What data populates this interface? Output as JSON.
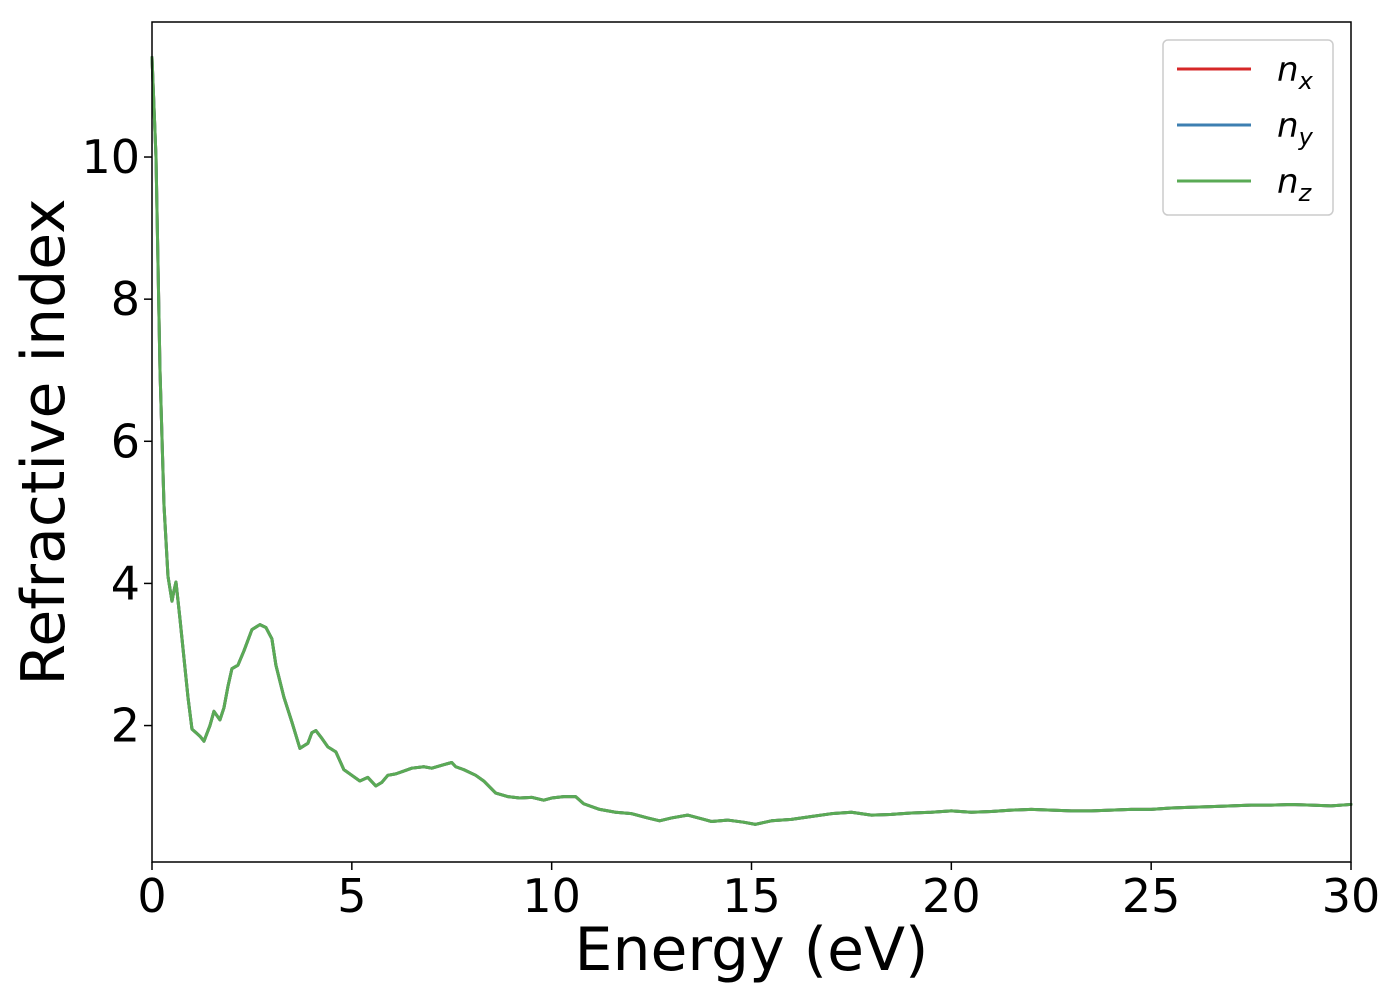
{
  "chart_data": {
    "type": "line",
    "title": "",
    "xlabel": "Energy (eV)",
    "ylabel": "Refractive index",
    "xlim": [
      0,
      30
    ],
    "ylim": [
      0.08,
      11.9
    ],
    "xticks": [
      "0",
      "5",
      "10",
      "15",
      "20",
      "25",
      "30"
    ],
    "yticks": [
      "2",
      "4",
      "6",
      "8",
      "10"
    ],
    "grid": false,
    "legend_position": "top-right",
    "series": [
      {
        "name": "n",
        "subscript": "x",
        "color": "#d62728",
        "x": [
          0,
          0.1,
          0.2,
          0.3,
          0.4,
          0.5,
          0.55,
          0.6,
          0.7,
          0.8,
          0.9,
          1.0,
          1.1,
          1.2,
          1.3,
          1.45,
          1.55,
          1.7,
          1.8,
          1.9,
          2.0,
          2.15,
          2.3,
          2.5,
          2.7,
          2.85,
          3.0,
          3.1,
          3.3,
          3.5,
          3.7,
          3.9,
          4.0,
          4.1,
          4.25,
          4.4,
          4.6,
          4.8,
          5.0,
          5.2,
          5.4,
          5.6,
          5.75,
          5.9,
          6.1,
          6.3,
          6.5,
          6.8,
          7.0,
          7.3,
          7.5,
          7.6,
          7.8,
          8.1,
          8.3,
          8.6,
          8.9,
          9.2,
          9.5,
          9.8,
          10.0,
          10.3,
          10.6,
          10.8,
          11.2,
          11.6,
          12.0,
          12.4,
          12.7,
          13.0,
          13.4,
          13.8,
          14.0,
          14.4,
          14.8,
          15.1,
          15.5,
          16.0,
          16.5,
          17.0,
          17.5,
          18.0,
          18.5,
          19.0,
          19.5,
          20.0,
          20.5,
          21.0,
          21.5,
          22.0,
          22.5,
          23.0,
          23.5,
          24.0,
          24.5,
          25.0,
          25.5,
          26.0,
          26.5,
          27.0,
          27.5,
          28.0,
          28.5,
          29.0,
          29.5,
          30.0
        ],
        "y": [
          11.4,
          10.0,
          7.0,
          5.1,
          4.1,
          3.75,
          3.9,
          4.02,
          3.5,
          2.95,
          2.4,
          1.95,
          1.9,
          1.85,
          1.78,
          2.0,
          2.2,
          2.08,
          2.25,
          2.55,
          2.8,
          2.85,
          3.05,
          3.35,
          3.42,
          3.38,
          3.22,
          2.85,
          2.4,
          2.05,
          1.68,
          1.75,
          1.9,
          1.93,
          1.82,
          1.7,
          1.63,
          1.38,
          1.3,
          1.22,
          1.27,
          1.15,
          1.2,
          1.3,
          1.32,
          1.36,
          1.4,
          1.42,
          1.4,
          1.45,
          1.48,
          1.42,
          1.38,
          1.3,
          1.22,
          1.05,
          1.0,
          0.98,
          0.99,
          0.95,
          0.98,
          1.0,
          1.0,
          0.9,
          0.82,
          0.78,
          0.76,
          0.7,
          0.66,
          0.7,
          0.74,
          0.68,
          0.65,
          0.67,
          0.64,
          0.61,
          0.66,
          0.68,
          0.72,
          0.76,
          0.78,
          0.74,
          0.75,
          0.77,
          0.78,
          0.8,
          0.78,
          0.79,
          0.81,
          0.82,
          0.81,
          0.8,
          0.8,
          0.81,
          0.82,
          0.82,
          0.84,
          0.85,
          0.86,
          0.87,
          0.88,
          0.88,
          0.89,
          0.88,
          0.87,
          0.89
        ]
      },
      {
        "name": "n",
        "subscript": "y",
        "color": "#3d7fb1",
        "x": [
          0,
          0.1,
          0.2,
          0.3,
          0.4,
          0.5,
          0.55,
          0.6,
          0.7,
          0.8,
          0.9,
          1.0,
          1.1,
          1.2,
          1.3,
          1.45,
          1.55,
          1.7,
          1.8,
          1.9,
          2.0,
          2.15,
          2.3,
          2.5,
          2.7,
          2.85,
          3.0,
          3.1,
          3.3,
          3.5,
          3.7,
          3.9,
          4.0,
          4.1,
          4.25,
          4.4,
          4.6,
          4.8,
          5.0,
          5.2,
          5.4,
          5.6,
          5.75,
          5.9,
          6.1,
          6.3,
          6.5,
          6.8,
          7.0,
          7.3,
          7.5,
          7.6,
          7.8,
          8.1,
          8.3,
          8.6,
          8.9,
          9.2,
          9.5,
          9.8,
          10.0,
          10.3,
          10.6,
          10.8,
          11.2,
          11.6,
          12.0,
          12.4,
          12.7,
          13.0,
          13.4,
          13.8,
          14.0,
          14.4,
          14.8,
          15.1,
          15.5,
          16.0,
          16.5,
          17.0,
          17.5,
          18.0,
          18.5,
          19.0,
          19.5,
          20.0,
          20.5,
          21.0,
          21.5,
          22.0,
          22.5,
          23.0,
          23.5,
          24.0,
          24.5,
          25.0,
          25.5,
          26.0,
          26.5,
          27.0,
          27.5,
          28.0,
          28.5,
          29.0,
          29.5,
          30.0
        ],
        "y": [
          11.4,
          10.0,
          7.0,
          5.1,
          4.1,
          3.75,
          3.9,
          4.02,
          3.5,
          2.95,
          2.4,
          1.95,
          1.9,
          1.85,
          1.78,
          2.0,
          2.2,
          2.08,
          2.25,
          2.55,
          2.8,
          2.85,
          3.05,
          3.35,
          3.42,
          3.38,
          3.22,
          2.85,
          2.4,
          2.05,
          1.68,
          1.75,
          1.9,
          1.93,
          1.82,
          1.7,
          1.63,
          1.38,
          1.3,
          1.22,
          1.27,
          1.15,
          1.2,
          1.3,
          1.32,
          1.36,
          1.4,
          1.42,
          1.4,
          1.45,
          1.48,
          1.42,
          1.38,
          1.3,
          1.22,
          1.05,
          1.0,
          0.98,
          0.99,
          0.95,
          0.98,
          1.0,
          1.0,
          0.9,
          0.82,
          0.78,
          0.76,
          0.7,
          0.66,
          0.7,
          0.74,
          0.68,
          0.65,
          0.67,
          0.64,
          0.61,
          0.66,
          0.68,
          0.72,
          0.76,
          0.78,
          0.74,
          0.75,
          0.77,
          0.78,
          0.8,
          0.78,
          0.79,
          0.81,
          0.82,
          0.81,
          0.8,
          0.8,
          0.81,
          0.82,
          0.82,
          0.84,
          0.85,
          0.86,
          0.87,
          0.88,
          0.88,
          0.89,
          0.88,
          0.87,
          0.89
        ]
      },
      {
        "name": "n",
        "subscript": "z",
        "color": "#5aaa55",
        "x": [
          0,
          0.1,
          0.2,
          0.3,
          0.4,
          0.5,
          0.55,
          0.6,
          0.7,
          0.8,
          0.9,
          1.0,
          1.1,
          1.2,
          1.3,
          1.45,
          1.55,
          1.7,
          1.8,
          1.9,
          2.0,
          2.15,
          2.3,
          2.5,
          2.7,
          2.85,
          3.0,
          3.1,
          3.3,
          3.5,
          3.7,
          3.9,
          4.0,
          4.1,
          4.25,
          4.4,
          4.6,
          4.8,
          5.0,
          5.2,
          5.4,
          5.6,
          5.75,
          5.9,
          6.1,
          6.3,
          6.5,
          6.8,
          7.0,
          7.3,
          7.5,
          7.6,
          7.8,
          8.1,
          8.3,
          8.6,
          8.9,
          9.2,
          9.5,
          9.8,
          10.0,
          10.3,
          10.6,
          10.8,
          11.2,
          11.6,
          12.0,
          12.4,
          12.7,
          13.0,
          13.4,
          13.8,
          14.0,
          14.4,
          14.8,
          15.1,
          15.5,
          16.0,
          16.5,
          17.0,
          17.5,
          18.0,
          18.5,
          19.0,
          19.5,
          20.0,
          20.5,
          21.0,
          21.5,
          22.0,
          22.5,
          23.0,
          23.5,
          24.0,
          24.5,
          25.0,
          25.5,
          26.0,
          26.5,
          27.0,
          27.5,
          28.0,
          28.5,
          29.0,
          29.5,
          30.0
        ],
        "y": [
          11.4,
          10.0,
          7.0,
          5.1,
          4.1,
          3.75,
          3.9,
          4.02,
          3.5,
          2.95,
          2.4,
          1.95,
          1.9,
          1.85,
          1.78,
          2.0,
          2.2,
          2.08,
          2.25,
          2.55,
          2.8,
          2.85,
          3.05,
          3.35,
          3.42,
          3.38,
          3.22,
          2.85,
          2.4,
          2.05,
          1.68,
          1.75,
          1.9,
          1.93,
          1.82,
          1.7,
          1.63,
          1.38,
          1.3,
          1.22,
          1.27,
          1.15,
          1.2,
          1.3,
          1.32,
          1.36,
          1.4,
          1.42,
          1.4,
          1.45,
          1.48,
          1.42,
          1.38,
          1.3,
          1.22,
          1.05,
          1.0,
          0.98,
          0.99,
          0.95,
          0.98,
          1.0,
          1.0,
          0.9,
          0.82,
          0.78,
          0.76,
          0.7,
          0.66,
          0.7,
          0.74,
          0.68,
          0.65,
          0.67,
          0.64,
          0.61,
          0.66,
          0.68,
          0.72,
          0.76,
          0.78,
          0.74,
          0.75,
          0.77,
          0.78,
          0.8,
          0.78,
          0.79,
          0.81,
          0.82,
          0.81,
          0.8,
          0.8,
          0.81,
          0.82,
          0.82,
          0.84,
          0.85,
          0.86,
          0.87,
          0.88,
          0.88,
          0.89,
          0.88,
          0.87,
          0.89
        ]
      }
    ]
  }
}
